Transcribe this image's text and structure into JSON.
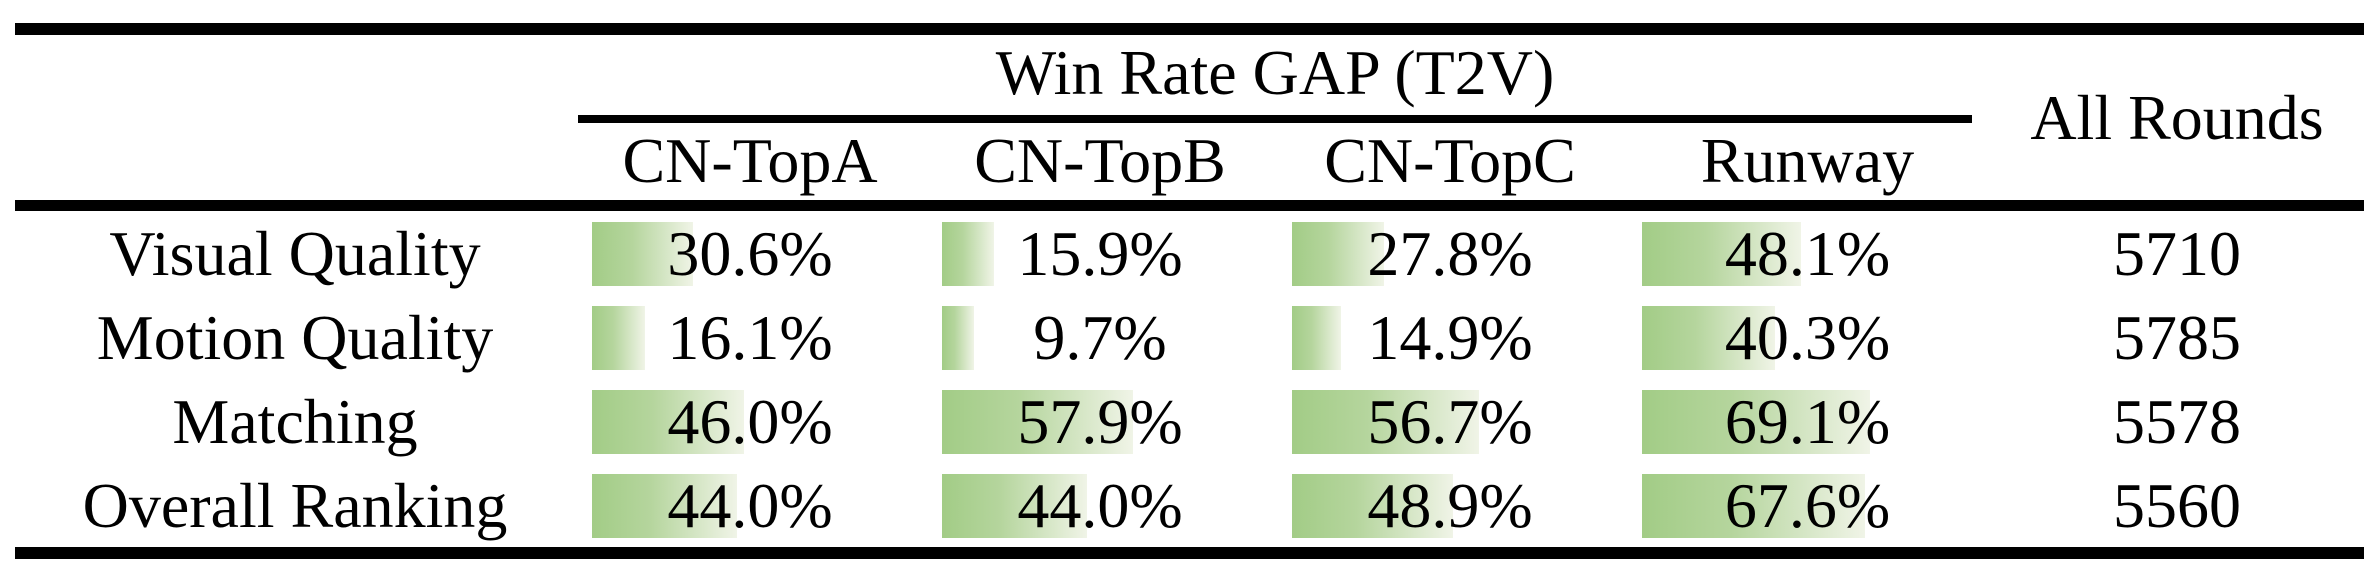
{
  "colors": {
    "background": "#ffffff",
    "text": "#000000",
    "rule": "#000000",
    "bar_gradient_start": "#a2cc86",
    "bar_gradient_mid": "#b5d59d",
    "bar_gradient_end": "#f0f4e7"
  },
  "table": {
    "group_header": "Win Rate GAP (T2V)",
    "all_rounds_header": "All Rounds",
    "model_columns": [
      {
        "label": "CN-TopA"
      },
      {
        "label": "CN-TopB"
      },
      {
        "label": "CN-TopC"
      },
      {
        "label": "Runway"
      }
    ],
    "rows": [
      {
        "label": "Visual Quality",
        "cells": [
          {
            "text": "30.6%",
            "value": 30.6
          },
          {
            "text": "15.9%",
            "value": 15.9
          },
          {
            "text": "27.8%",
            "value": 27.8
          },
          {
            "text": "48.1%",
            "value": 48.1
          }
        ],
        "all_rounds": "5710"
      },
      {
        "label": "Motion Quality",
        "cells": [
          {
            "text": "16.1%",
            "value": 16.1
          },
          {
            "text": "9.7%",
            "value": 9.7
          },
          {
            "text": "14.9%",
            "value": 14.9
          },
          {
            "text": "40.3%",
            "value": 40.3
          }
        ],
        "all_rounds": "5785"
      },
      {
        "label": "Matching",
        "cells": [
          {
            "text": "46.0%",
            "value": 46.0
          },
          {
            "text": "57.9%",
            "value": 57.9
          },
          {
            "text": "56.7%",
            "value": 56.7
          },
          {
            "text": "69.1%",
            "value": 69.1
          }
        ],
        "all_rounds": "5578"
      },
      {
        "label": "Overall Ranking",
        "cells": [
          {
            "text": "44.0%",
            "value": 44.0
          },
          {
            "text": "44.0%",
            "value": 44.0
          },
          {
            "text": "48.9%",
            "value": 48.9
          },
          {
            "text": "67.6%",
            "value": 67.6
          }
        ],
        "all_rounds": "5560"
      }
    ]
  },
  "chart_data": {
    "type": "table",
    "title": "Win Rate GAP (T2V)",
    "columns": [
      "CN-TopA",
      "CN-TopB",
      "CN-TopC",
      "Runway",
      "All Rounds"
    ],
    "row_labels": [
      "Visual Quality",
      "Motion Quality",
      "Matching",
      "Overall Ranking"
    ],
    "series": [
      {
        "name": "CN-TopA",
        "unit": "%",
        "values": [
          30.6,
          16.1,
          46.0,
          44.0
        ]
      },
      {
        "name": "CN-TopB",
        "unit": "%",
        "values": [
          15.9,
          9.7,
          57.9,
          44.0
        ]
      },
      {
        "name": "CN-TopC",
        "unit": "%",
        "values": [
          27.8,
          14.9,
          56.7,
          48.9
        ]
      },
      {
        "name": "Runway",
        "unit": "%",
        "values": [
          48.1,
          40.3,
          69.1,
          67.6
        ]
      },
      {
        "name": "All Rounds",
        "unit": "count",
        "values": [
          5710,
          5785,
          5578,
          5560
        ]
      }
    ],
    "layout_hints": "percentage cells contain left-aligned green gradient data bars proportional to value (≈3.3px per percent); booktabs rules: thick top, thin cmidrule under group header spanning the four model columns, thick rule above body, thick bottom rule"
  }
}
